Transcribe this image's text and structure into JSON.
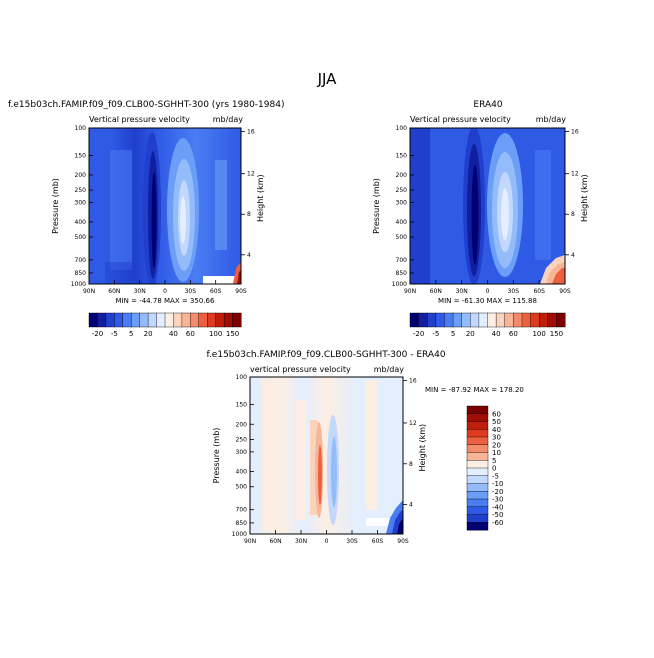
{
  "title": "JJA",
  "colors": {
    "neg": [
      "#000073",
      "#0f1fa0",
      "#1f3fcc",
      "#2f5ae6",
      "#4a7cf2",
      "#6b9ef7",
      "#94bcfa",
      "#c2d8fc",
      "#e3eefe"
    ],
    "pos": [
      "#fdeee3",
      "#fbd3bd",
      "#f8b596",
      "#f48c6b",
      "#ec5f3f",
      "#de3a1e",
      "#c11d0c",
      "#a00d05",
      "#7a0000"
    ]
  },
  "panels": [
    {
      "id": "model",
      "title_left": "f.e15b03ch.FAMIP.f09_f09.CLB00-SGHHT-300 (yrs 1980-1984)",
      "title_right": "",
      "var_label": "Vertical pressure velocity",
      "units": "mb/day",
      "stats": "MIN = -44.78   MAX = 350.66",
      "ylabel": "Pressure (mb)",
      "ylabel_right": "Height (km)"
    },
    {
      "id": "era40",
      "title_left": "",
      "title_right": "ERA40",
      "var_label": "Vertical pressure velocity",
      "units": "mb/day",
      "stats": "MIN = -61.30   MAX = 115.88",
      "ylabel": "Pressure (mb)",
      "ylabel_right": "Height (km)"
    },
    {
      "id": "diff",
      "title_center": "f.e15b03ch.FAMIP.f09_f09.CLB00-SGHHT-300 - ERA40",
      "var_label": "vertical pressure velocity",
      "units": "mb/day",
      "stats": "MIN = -87.92   MAX = 178.20",
      "ylabel": "Pressure (mb)",
      "ylabel_right": "Height (km)"
    }
  ],
  "axes": {
    "x_ticks": [
      "90N",
      "60N",
      "30N",
      "0",
      "30S",
      "60S",
      "90S"
    ],
    "p_ticks": [
      "100",
      "150",
      "200",
      "250",
      "300",
      "400",
      "500",
      "700",
      "850",
      "1000"
    ],
    "z_ticks": [
      "16",
      "12",
      "8",
      "4"
    ]
  },
  "colorbar_horizontal": {
    "labels": [
      "-20",
      "-5",
      "5",
      "20",
      "40",
      "60",
      "100",
      "150"
    ]
  },
  "colorbar_vertical": {
    "labels": [
      "60",
      "50",
      "40",
      "30",
      "20",
      "10",
      "5",
      "0",
      "-5",
      "-10",
      "-20",
      "-30",
      "-40",
      "-50",
      "-60"
    ]
  },
  "chart_data": [
    {
      "type": "heatmap",
      "title": "Vertical pressure velocity",
      "xlabel": "",
      "ylabel": "Pressure (mb)",
      "x_ticks": [
        "90N",
        "60N",
        "30N",
        "0",
        "30S",
        "60S",
        "90S"
      ],
      "y_ticks": [
        "100",
        "150",
        "200",
        "250",
        "300",
        "400",
        "500",
        "700",
        "850",
        "1000"
      ],
      "units": "mb/day",
      "min": -44.78,
      "max": 350.66
    },
    {
      "type": "heatmap",
      "title": "ERA40",
      "xlabel": "",
      "ylabel": "Pressure (mb)",
      "x_ticks": [
        "90N",
        "60N",
        "30N",
        "0",
        "30S",
        "60S",
        "90S"
      ],
      "y_ticks": [
        "100",
        "150",
        "200",
        "250",
        "300",
        "400",
        "500",
        "700",
        "850",
        "1000"
      ],
      "units": "mb/day",
      "min": -61.3,
      "max": 115.88
    },
    {
      "type": "heatmap",
      "title": "f.e15b03ch.FAMIP.f09_f09.CLB00-SGHHT-300 - ERA40",
      "xlabel": "",
      "ylabel": "Pressure (mb)",
      "x_ticks": [
        "90N",
        "60N",
        "30N",
        "0",
        "30S",
        "60S",
        "90S"
      ],
      "y_ticks": [
        "100",
        "150",
        "200",
        "250",
        "300",
        "400",
        "500",
        "700",
        "850",
        "1000"
      ],
      "units": "mb/day",
      "min": -87.92,
      "max": 178.2
    }
  ]
}
